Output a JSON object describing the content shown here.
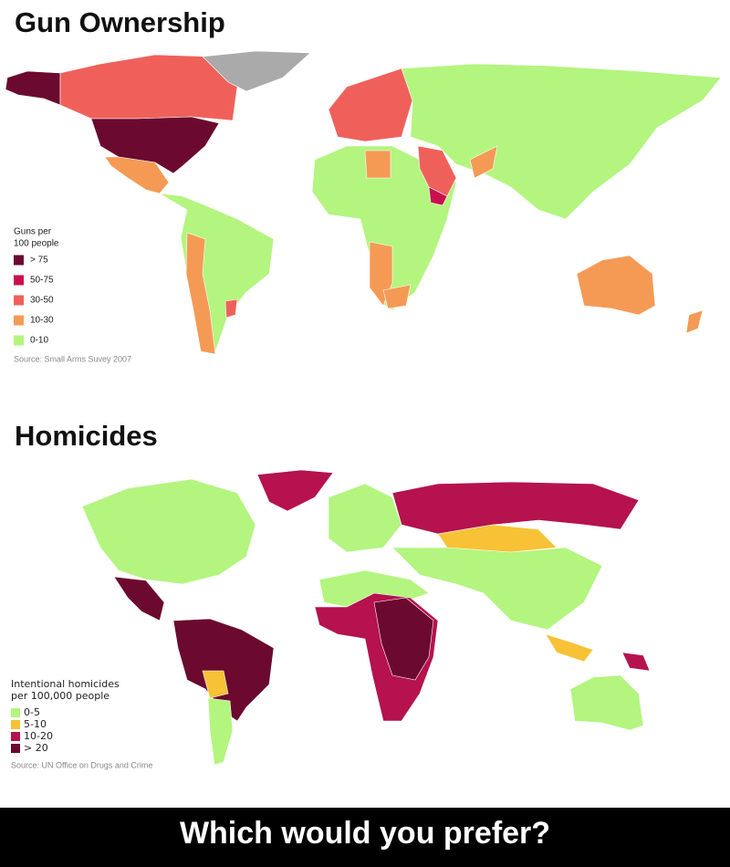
{
  "maps": [
    {
      "title": "Gun Ownership",
      "legend": {
        "title_lines": [
          "Guns per",
          "100 people"
        ],
        "items": [
          {
            "label": "> 75",
            "color": "#6b0a2e"
          },
          {
            "label": "50-75",
            "color": "#c8104f"
          },
          {
            "label": "30-50",
            "color": "#f0605a"
          },
          {
            "label": "10-30",
            "color": "#f59a55"
          },
          {
            "label": "0-10",
            "color": "#b3f57f"
          }
        ]
      },
      "source": "Source: Small Arms Suvey 2007"
    },
    {
      "title": "Homicides",
      "legend": {
        "title_lines": [
          "Intentional homicides",
          "per 100,000 people"
        ],
        "items": [
          {
            "label": "0-5",
            "color": "#b3f57f"
          },
          {
            "label": "5-10",
            "color": "#f7c235"
          },
          {
            "label": "10-20",
            "color": "#b5124e"
          },
          {
            "label": "> 20",
            "color": "#6b0a2e"
          }
        ]
      },
      "source": "Source: UN Office on Drugs and Crime"
    }
  ],
  "caption": "Which would you prefer?"
}
